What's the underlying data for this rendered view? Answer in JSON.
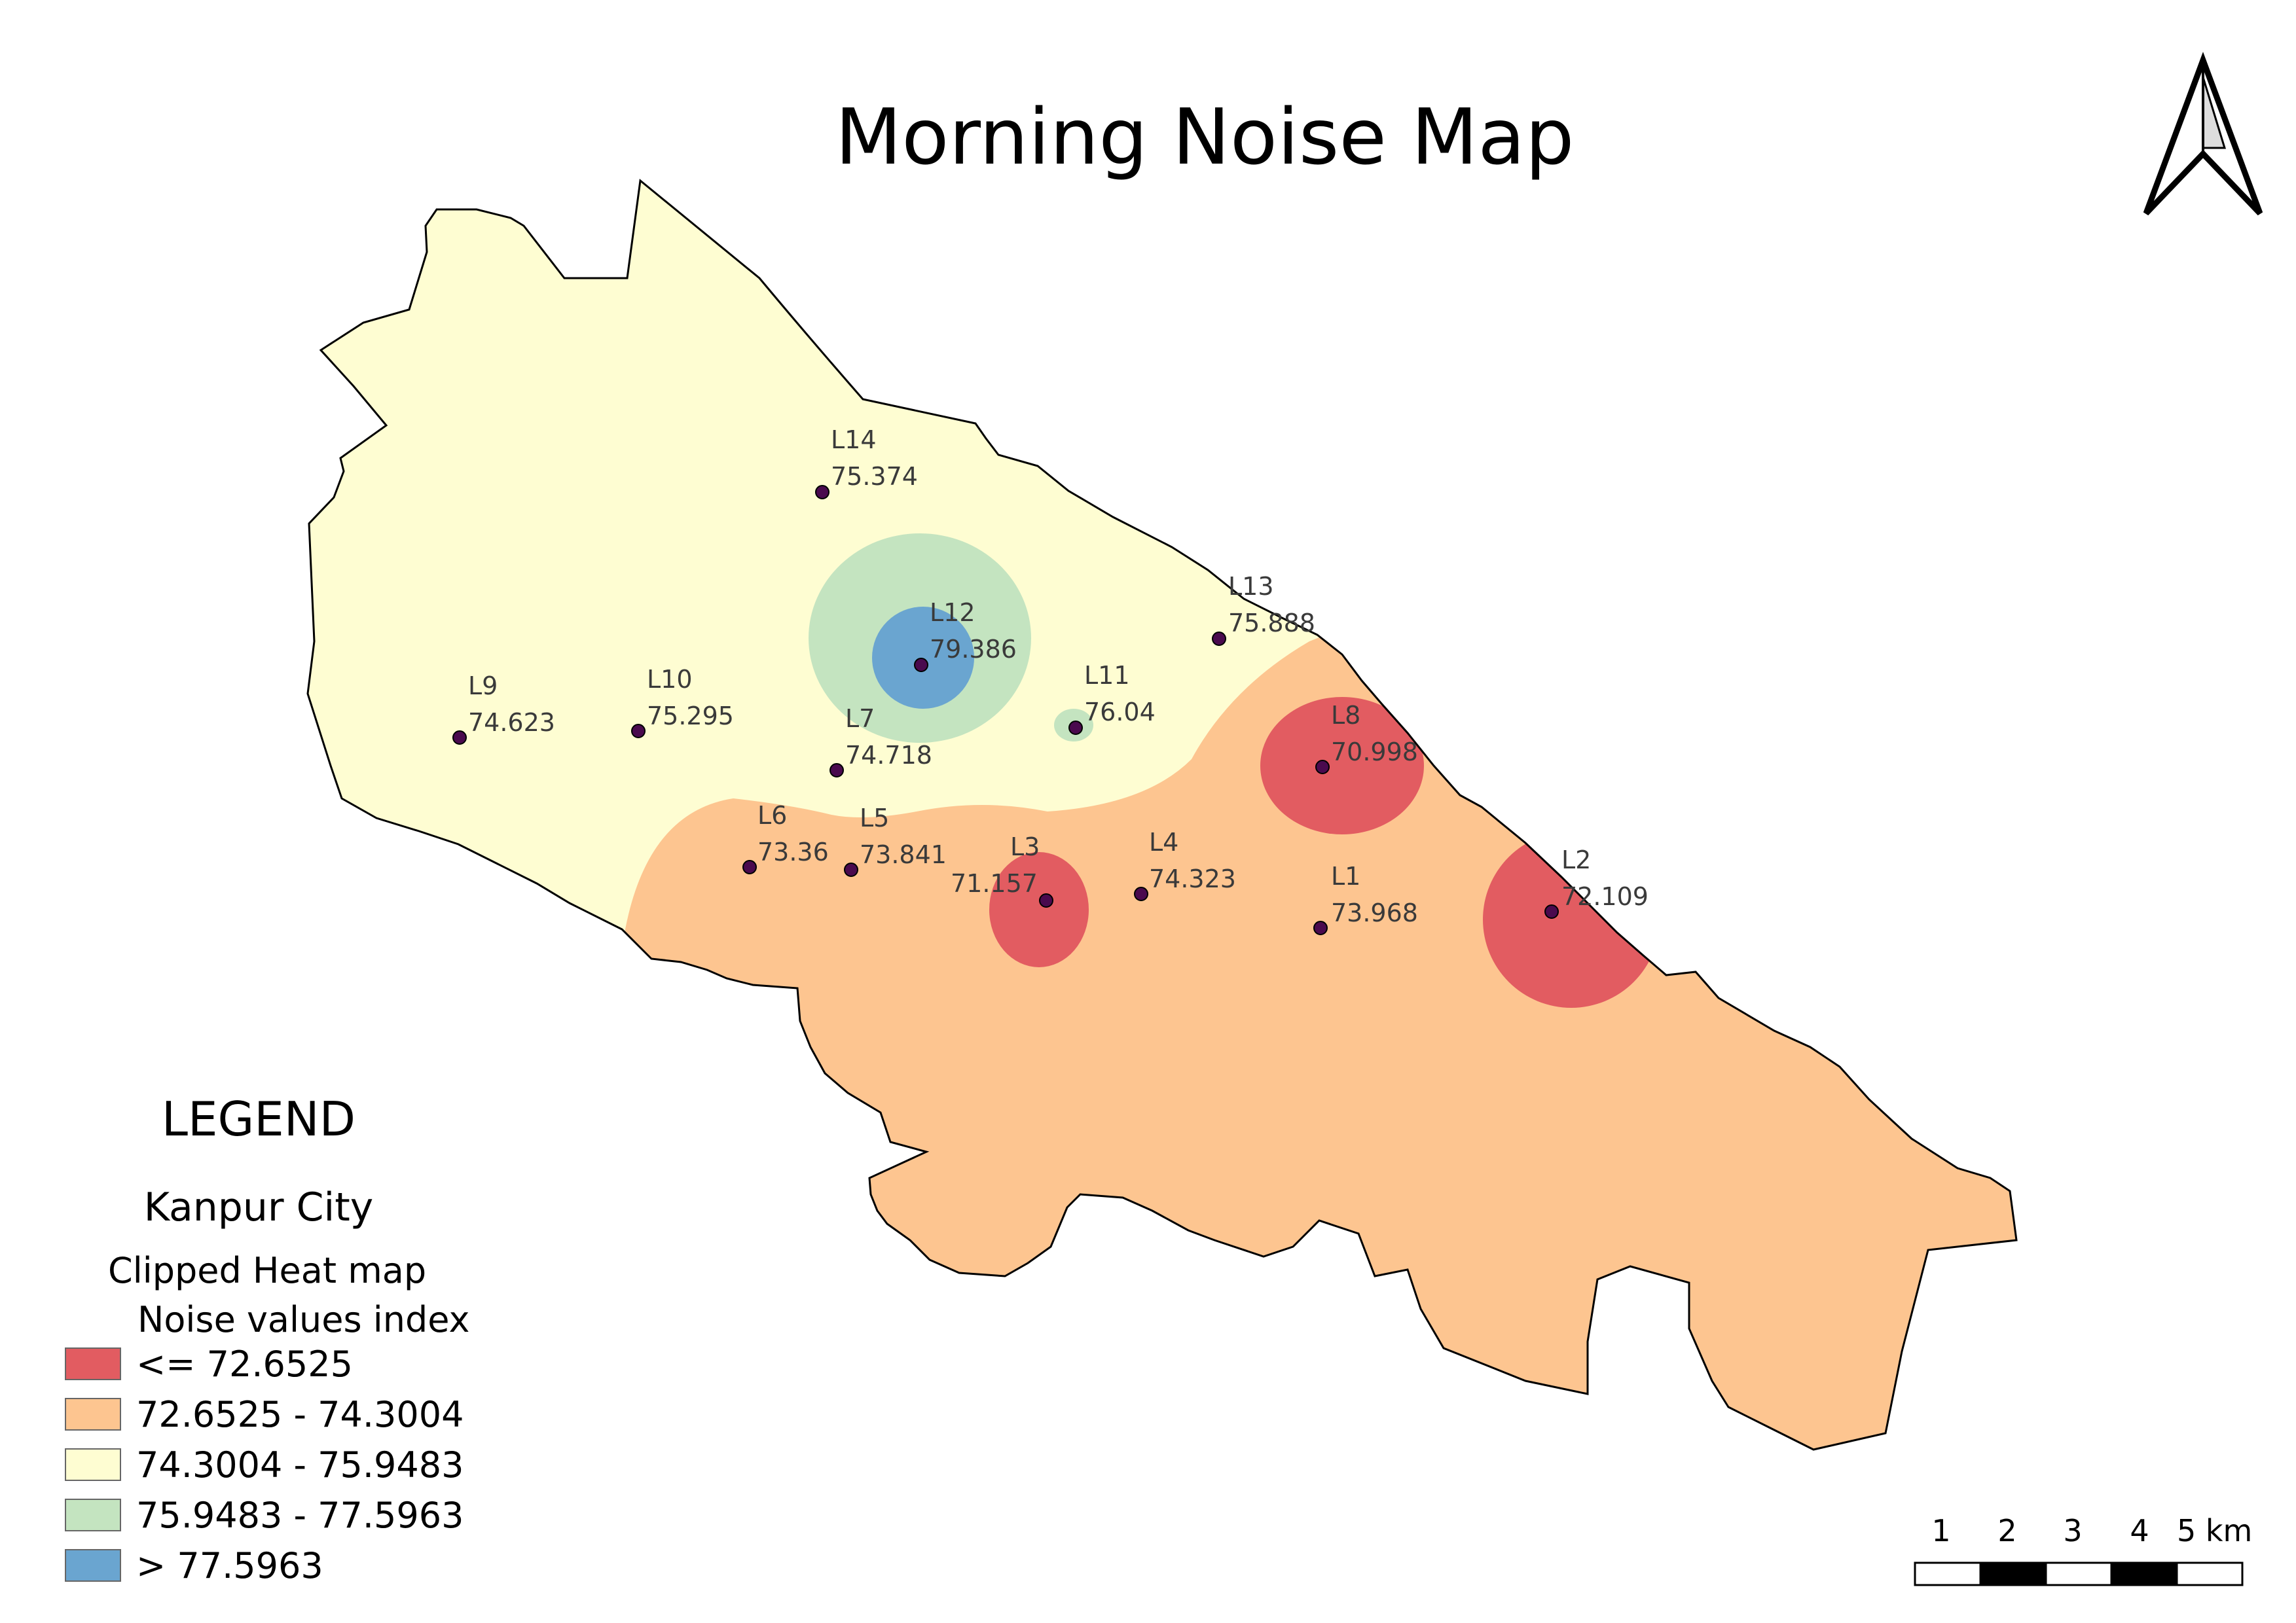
{
  "title": "Morning Noise Map",
  "legend": {
    "heading": "LEGEND",
    "layer_name": "Kanpur City",
    "group_name": "Clipped Heat map",
    "field_name": "Noise values index",
    "classes": [
      {
        "label": "<= 72.6525",
        "color": "#e25c61"
      },
      {
        "label": "72.6525 - 74.3004",
        "color": "#fdc590"
      },
      {
        "label": "74.3004 - 75.9483",
        "color": "#fefdd2"
      },
      {
        "label": "75.9483 - 77.5963",
        "color": "#c4e4c0"
      },
      {
        "label": "> 77.5963",
        "color": "#6aa5d0"
      }
    ]
  },
  "points": [
    {
      "id": "L1",
      "value": "73.968"
    },
    {
      "id": "L2",
      "value": "72.109"
    },
    {
      "id": "L3",
      "value": "71.157"
    },
    {
      "id": "L4",
      "value": "74.323"
    },
    {
      "id": "L5",
      "value": "73.841"
    },
    {
      "id": "L6",
      "value": "73.36"
    },
    {
      "id": "L7",
      "value": "74.718"
    },
    {
      "id": "L8",
      "value": "70.998"
    },
    {
      "id": "L9",
      "value": "74.623"
    },
    {
      "id": "L10",
      "value": "75.295"
    },
    {
      "id": "L11",
      "value": "76.04"
    },
    {
      "id": "L12",
      "value": "79.386"
    },
    {
      "id": "L13",
      "value": "75.888"
    },
    {
      "id": "L14",
      "value": "75.374"
    }
  ],
  "scale_bar": {
    "labels": [
      "1",
      "2",
      "3",
      "4",
      "5 km"
    ]
  },
  "north_arrow": {
    "icon": "north-arrow-icon"
  },
  "point_color": "#4a0a4e"
}
